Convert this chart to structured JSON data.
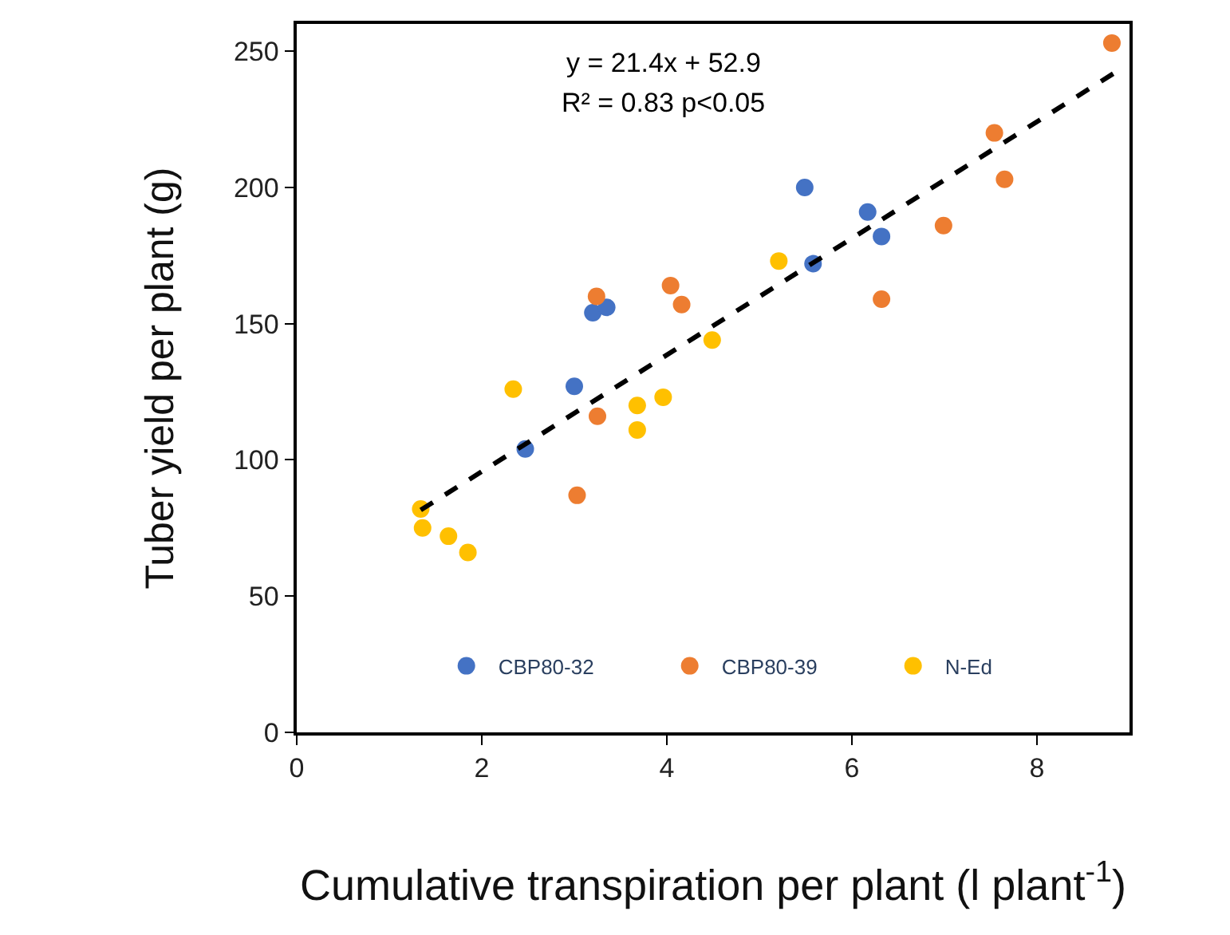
{
  "chart_data": {
    "type": "scatter",
    "xlabel": "Cumulative transpiration per plant (l plant$^{-1}$)",
    "ylabel": "Tuber yield per plant (g)",
    "annotations": [
      "y = 21.4x + 52.9",
      "R² = 0.83 p<0.05"
    ],
    "xlim": [
      0,
      9
    ],
    "xticks": [
      0,
      2,
      4,
      6,
      8
    ],
    "ylim": [
      0,
      260
    ],
    "yticks": [
      0,
      50,
      100,
      150,
      200,
      250
    ],
    "legend": "bottom right",
    "marker": "circle",
    "series": [
      {
        "name": "CBP80-32",
        "color": "#4472c4",
        "x": [
          2.47,
          3.0,
          3.2,
          3.35,
          5.49,
          6.17,
          6.32,
          5.58
        ],
        "values": [
          104,
          127,
          154,
          156,
          200,
          191,
          182,
          172
        ]
      },
      {
        "name": "CBP80-39",
        "color": "#ed7d31",
        "x": [
          8.81,
          7.54,
          7.65,
          6.99,
          6.32,
          3.24,
          4.04,
          4.16,
          3.25,
          3.03
        ],
        "values": [
          253,
          220,
          203,
          186,
          159,
          160,
          164,
          157,
          116,
          87
        ]
      },
      {
        "name": "N-Ed",
        "color": "#ffc000",
        "x": [
          5.21,
          4.49,
          2.34,
          3.68,
          3.96,
          3.68,
          1.34,
          1.36,
          1.64,
          1.85
        ],
        "values": [
          173,
          144,
          126,
          120,
          123,
          111,
          82,
          75,
          72,
          66
        ]
      },
      {
        "type": "line",
        "color": "#000000",
        "line_style": "dashed",
        "marker": "none",
        "x": [
          1.34,
          8.85
        ],
        "values": [
          81.6,
          242.3
        ]
      }
    ]
  }
}
